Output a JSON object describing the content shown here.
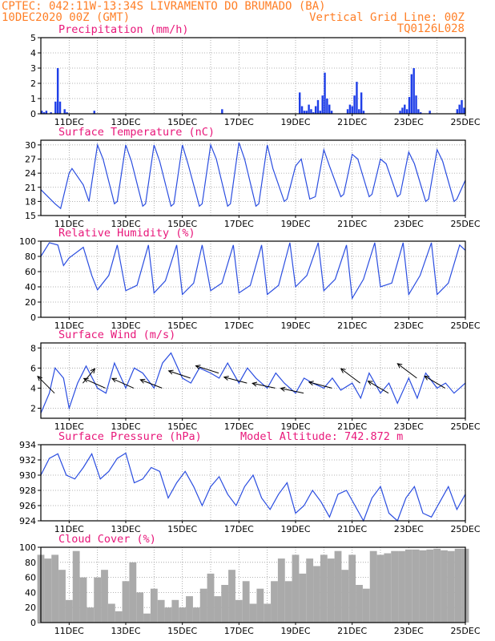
{
  "header": {
    "left1": "CPTEC:  042:11W-13:34S  LIVRAMENTO DO BRUMADO (BA)",
    "left2": "10DEC2020 00Z (GMT)",
    "right1": "Vertical Grid Line: 00Z",
    "right2": "TQ0126L028"
  },
  "colors": {
    "line": "#2a4de0",
    "bar": "#1f3fe8",
    "cloud": "#aaaaaa",
    "header": "#ff7f27",
    "title": "#e8177a"
  },
  "chart_data": [
    {
      "type": "bar",
      "title": "Precipitation (mm/h)",
      "x_ticks": [
        "11DEC",
        "13DEC",
        "15DEC",
        "17DEC",
        "19DEC",
        "21DEC",
        "23DEC",
        "25DEC"
      ],
      "ylim": [
        0,
        5
      ],
      "y_ticks": [
        "0",
        "1",
        "2",
        "3",
        "4",
        "5"
      ],
      "values": [
        0.2,
        0.1,
        0.2,
        0.0,
        0.1,
        0.0,
        0.8,
        3.0,
        0.8,
        0.0,
        0.3,
        0.1,
        0.0,
        0.0,
        0.0,
        0.0,
        0.0,
        0.0,
        0.0,
        0.0,
        0.0,
        0.0,
        0.0,
        0.2,
        0.0,
        0.0,
        0.0,
        0.0,
        0.0,
        0.0,
        0.0,
        0.0,
        0.0,
        0.0,
        0.0,
        0.0,
        0.0,
        0.0,
        0.0,
        0.0,
        0.0,
        0.0,
        0.0,
        0.0,
        0.0,
        0.0,
        0.0,
        0.0,
        0.0,
        0.0,
        0.0,
        0.0,
        0.0,
        0.0,
        0.0,
        0.0,
        0.0,
        0.0,
        0.0,
        0.0,
        0.0,
        0.0,
        0.0,
        0.0,
        0.0,
        0.0,
        0.0,
        0.0,
        0.0,
        0.0,
        0.0,
        0.0,
        0.0,
        0.0,
        0.0,
        0.0,
        0.0,
        0.0,
        0.0,
        0.3,
        0.0,
        0.0,
        0.0,
        0.0,
        0.0,
        0.0,
        0.0,
        0.0,
        0.0,
        0.0,
        0.0,
        0.0,
        0.0,
        0.0,
        0.0,
        0.0,
        0.0,
        0.0,
        0.0,
        0.0,
        0.0,
        0.0,
        0.0,
        0.0,
        0.0,
        0.0,
        0.0,
        0.0,
        0.0,
        0.0,
        0.0,
        0.0,
        0.0,
        1.4,
        0.5,
        0.2,
        0.2,
        0.6,
        0.3,
        0.1,
        0.5,
        0.9,
        0.2,
        1.2,
        2.7,
        1.0,
        0.6,
        0.2,
        0.0,
        0.0,
        0.0,
        0.0,
        0.0,
        0.0,
        0.3,
        0.6,
        0.5,
        1.2,
        2.1,
        0.3,
        1.4,
        0.2,
        0.0,
        0.0,
        0.0,
        0.0,
        0.0,
        0.0,
        0.0,
        0.0,
        0.0,
        0.0,
        0.0,
        0.0,
        0.0,
        0.0,
        0.0,
        0.2,
        0.4,
        0.6,
        0.3,
        1.1,
        2.6,
        3.0,
        1.2,
        0.3,
        0.1,
        0.0,
        0.0,
        0.0,
        0.2,
        0.0,
        0.0,
        0.0,
        0.0,
        0.0,
        0.0,
        0.0,
        0.0,
        0.0,
        0.0,
        0.0,
        0.3,
        0.6,
        0.9,
        0.4
      ]
    },
    {
      "type": "line",
      "title": "Surface Temperature (nC)",
      "x_ticks": [
        "11DEC",
        "13DEC",
        "15DEC",
        "17DEC",
        "19DEC",
        "21DEC",
        "23DEC",
        "25DEC"
      ],
      "ylim": [
        15,
        31
      ],
      "y_ticks": [
        "15",
        "18",
        "21",
        "24",
        "27",
        "30"
      ],
      "days": [
        0,
        0.5,
        0.7,
        1,
        1.1,
        1.5,
        1.7,
        2,
        2.2,
        2.6,
        2.7,
        3,
        3.2,
        3.6,
        3.7,
        4,
        4.2,
        4.6,
        4.7,
        5,
        5.2,
        5.6,
        5.7,
        6,
        6.2,
        6.6,
        6.7,
        7,
        7.2,
        7.6,
        7.7,
        8,
        8.2,
        8.6,
        8.7,
        9,
        9.2,
        9.5,
        9.7,
        10,
        10.2,
        10.6,
        10.7,
        11,
        11.2,
        11.6,
        11.7,
        12,
        12.2,
        12.6,
        12.7,
        13,
        13.2,
        13.6,
        13.7,
        14,
        14.2,
        14.6,
        14.7,
        15
      ],
      "values": [
        20.5,
        17.5,
        16.5,
        24.0,
        25.0,
        21.5,
        18.0,
        30.0,
        27.0,
        17.5,
        18.0,
        30.0,
        26.5,
        17.0,
        17.5,
        30.0,
        26.5,
        17.0,
        17.5,
        30.0,
        26.0,
        17.0,
        17.5,
        30.0,
        27.0,
        17.0,
        17.5,
        30.5,
        27.0,
        17.0,
        17.5,
        30.0,
        25.0,
        18.0,
        18.5,
        25.5,
        27.0,
        18.5,
        19.0,
        29.0,
        25.5,
        19.0,
        19.5,
        28.0,
        27.0,
        19.0,
        19.5,
        27.0,
        26.0,
        19.0,
        19.5,
        28.5,
        26.0,
        18.0,
        18.5,
        29.0,
        26.5,
        18.0,
        18.5,
        22.5
      ]
    },
    {
      "type": "line",
      "title": "Relative Humidity (%)",
      "x_ticks": [
        "11DEC",
        "13DEC",
        "15DEC",
        "17DEC",
        "19DEC",
        "21DEC",
        "23DEC",
        "25DEC"
      ],
      "ylim": [
        0,
        100
      ],
      "y_ticks": [
        "0",
        "20",
        "40",
        "60",
        "80",
        "100"
      ],
      "days": [
        0,
        0.3,
        0.6,
        0.8,
        1,
        1.5,
        1.8,
        2,
        2.4,
        2.7,
        3,
        3.4,
        3.8,
        4,
        4.4,
        4.8,
        5,
        5.4,
        5.7,
        6,
        6.4,
        6.8,
        7,
        7.4,
        7.8,
        8,
        8.4,
        8.8,
        9,
        9.4,
        9.8,
        10,
        10.4,
        10.8,
        11,
        11.4,
        11.8,
        12,
        12.4,
        12.8,
        13,
        13.4,
        13.8,
        14,
        14.4,
        14.8,
        15
      ],
      "values": [
        80,
        98,
        95,
        68,
        78,
        92,
        55,
        36,
        55,
        95,
        35,
        42,
        95,
        32,
        48,
        95,
        30,
        45,
        95,
        35,
        45,
        95,
        32,
        42,
        95,
        30,
        42,
        98,
        40,
        55,
        98,
        35,
        50,
        95,
        25,
        50,
        98,
        40,
        45,
        98,
        30,
        55,
        98,
        30,
        45,
        95,
        88
      ]
    },
    {
      "type": "line",
      "title": "Surface Wind (m/s)",
      "x_ticks": [
        "11DEC",
        "13DEC",
        "15DEC",
        "17DEC",
        "19DEC",
        "21DEC",
        "23DEC",
        "25DEC"
      ],
      "ylim": [
        1,
        8.5
      ],
      "y_ticks": [
        "2",
        "4",
        "6",
        "8"
      ],
      "days": [
        0,
        0.3,
        0.5,
        0.8,
        1,
        1.3,
        1.6,
        2,
        2.3,
        2.6,
        3,
        3.3,
        3.6,
        4,
        4.3,
        4.6,
        5,
        5.3,
        5.6,
        6,
        6.3,
        6.6,
        7,
        7.3,
        7.6,
        8,
        8.3,
        8.6,
        9,
        9.3,
        9.6,
        10,
        10.3,
        10.6,
        11,
        11.3,
        11.6,
        12,
        12.3,
        12.6,
        13,
        13.3,
        13.6,
        14,
        14.3,
        14.6,
        15
      ],
      "values": [
        1.5,
        3.5,
        6.0,
        5.0,
        2.0,
        4.5,
        6.2,
        4.0,
        3.5,
        6.5,
        4.0,
        6.0,
        5.5,
        4.0,
        6.5,
        7.5,
        5.0,
        4.5,
        6.0,
        5.5,
        5.0,
        6.5,
        4.5,
        6.0,
        5.0,
        4.0,
        5.5,
        4.5,
        3.5,
        5.0,
        4.5,
        4.0,
        5.0,
        3.8,
        4.5,
        3.0,
        5.5,
        3.5,
        4.5,
        2.5,
        5.0,
        3.0,
        5.5,
        4.0,
        4.5,
        3.5,
        4.5
      ],
      "arrows": [
        [
          0.2,
          -0.7,
          0.7
        ],
        [
          1.2,
          0.5,
          0.6
        ],
        [
          2.0,
          -0.9,
          0.4
        ],
        [
          3.0,
          -0.9,
          0.4
        ],
        [
          4.0,
          -0.9,
          0.35
        ],
        [
          5.0,
          -0.9,
          0.3
        ],
        [
          6.0,
          -0.95,
          0.3
        ],
        [
          7.0,
          -0.95,
          0.25
        ],
        [
          8.0,
          -0.95,
          0.2
        ],
        [
          9.0,
          -0.95,
          0.2
        ],
        [
          10.0,
          -0.95,
          0.25
        ],
        [
          11.0,
          -0.8,
          0.6
        ],
        [
          12.0,
          -0.85,
          0.5
        ],
        [
          13.0,
          -0.8,
          0.6
        ],
        [
          14.0,
          -0.85,
          0.5
        ]
      ]
    },
    {
      "type": "line",
      "title": "Surface Pressure (hPa)",
      "annotation": "Model Altitude: 742.872 m",
      "x_ticks": [
        "11DEC",
        "13DEC",
        "15DEC",
        "17DEC",
        "19DEC",
        "21DEC",
        "23DEC",
        "25DEC"
      ],
      "ylim": [
        924,
        934
      ],
      "y_ticks": [
        "924",
        "926",
        "928",
        "930",
        "932",
        "934"
      ],
      "days": [
        0,
        0.3,
        0.6,
        0.9,
        1.2,
        1.5,
        1.8,
        2.1,
        2.4,
        2.7,
        3,
        3.3,
        3.6,
        3.9,
        4.2,
        4.5,
        4.8,
        5.1,
        5.4,
        5.7,
        6,
        6.3,
        6.6,
        6.9,
        7.2,
        7.5,
        7.8,
        8.1,
        8.4,
        8.7,
        9,
        9.3,
        9.6,
        9.9,
        10.2,
        10.5,
        10.8,
        11.1,
        11.4,
        11.7,
        12,
        12.3,
        12.6,
        12.9,
        13.2,
        13.5,
        13.8,
        14.1,
        14.4,
        14.7,
        15
      ],
      "values": [
        930.0,
        932.2,
        932.8,
        930.0,
        929.5,
        931.0,
        932.8,
        929.5,
        930.5,
        932.2,
        932.9,
        929.0,
        929.5,
        931.0,
        930.5,
        927.0,
        929.0,
        930.5,
        928.5,
        926.0,
        928.5,
        929.8,
        927.5,
        926.0,
        928.5,
        930.0,
        927.0,
        925.5,
        927.5,
        929.0,
        925.0,
        926.0,
        928.0,
        926.5,
        924.5,
        927.5,
        928.0,
        926.0,
        924.0,
        927.0,
        928.5,
        925.0,
        924.0,
        927.0,
        928.5,
        925.0,
        924.5,
        926.5,
        928.5,
        925.5,
        927.5
      ]
    },
    {
      "type": "area",
      "title": "Cloud Cover (%)",
      "x_ticks": [
        "11DEC",
        "13DEC",
        "15DEC",
        "17DEC",
        "19DEC",
        "21DEC",
        "23DEC",
        "25DEC"
      ],
      "ylim": [
        0,
        100
      ],
      "y_ticks": [
        "0",
        "20",
        "40",
        "60",
        "80",
        "100"
      ],
      "days": [
        0,
        0.25,
        0.5,
        0.75,
        1,
        1.25,
        1.5,
        1.75,
        2,
        2.25,
        2.5,
        2.75,
        3,
        3.25,
        3.5,
        3.75,
        4,
        4.25,
        4.5,
        4.75,
        5,
        5.25,
        5.5,
        5.75,
        6,
        6.25,
        6.5,
        6.75,
        7,
        7.25,
        7.5,
        7.75,
        8,
        8.25,
        8.5,
        8.75,
        9,
        9.25,
        9.5,
        9.75,
        10,
        10.25,
        10.5,
        10.75,
        11,
        11.25,
        11.5,
        11.75,
        12,
        12.25,
        12.5,
        12.75,
        13,
        13.25,
        13.5,
        13.75,
        14,
        14.25,
        14.5,
        14.75,
        15
      ],
      "values": [
        90,
        85,
        90,
        70,
        30,
        95,
        60,
        20,
        60,
        70,
        25,
        15,
        55,
        80,
        40,
        12,
        45,
        30,
        20,
        30,
        20,
        35,
        20,
        45,
        65,
        35,
        50,
        70,
        30,
        55,
        25,
        45,
        25,
        55,
        85,
        55,
        90,
        65,
        85,
        75,
        90,
        85,
        95,
        70,
        90,
        50,
        45,
        95,
        90,
        92,
        95,
        95,
        97,
        97,
        96,
        97,
        98,
        96,
        95,
        98,
        98
      ]
    }
  ]
}
